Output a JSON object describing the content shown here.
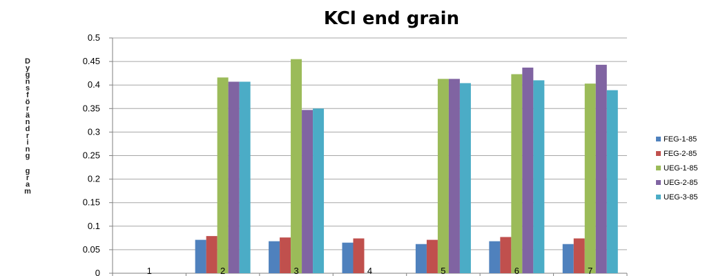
{
  "chart_data": {
    "type": "bar",
    "title": "KCl end grain",
    "xlabel": "",
    "ylabel": "Dygnsförändring gram",
    "categories": [
      "1",
      "2",
      "3",
      "4",
      "5",
      "6",
      "7"
    ],
    "yticks": [
      "0",
      "0.05",
      "0.1",
      "0.15",
      "0.2",
      "0.25",
      "0.3",
      "0.35",
      "0.4",
      "0.45",
      "0.5"
    ],
    "ylim": [
      0,
      0.5
    ],
    "grid": true,
    "legend_position": "right",
    "series": [
      {
        "name": "FEG-1-85",
        "color": "#4f81bd",
        "values": [
          null,
          0.071,
          0.068,
          0.065,
          0.062,
          0.068,
          0.062
        ]
      },
      {
        "name": "FEG-2-85",
        "color": "#c0504d",
        "values": [
          null,
          0.079,
          0.076,
          0.074,
          0.071,
          0.077,
          0.074
        ]
      },
      {
        "name": "UEG-1-85",
        "color": "#9bbb59",
        "values": [
          null,
          0.416,
          0.455,
          null,
          0.413,
          0.423,
          0.403
        ]
      },
      {
        "name": "UEG-2-85",
        "color": "#8064a2",
        "values": [
          null,
          0.407,
          0.347,
          null,
          0.413,
          0.437,
          0.443
        ]
      },
      {
        "name": "UEG-3-85",
        "color": "#4bacc6",
        "values": [
          null,
          0.407,
          0.35,
          null,
          0.404,
          0.41,
          0.389
        ]
      }
    ]
  }
}
